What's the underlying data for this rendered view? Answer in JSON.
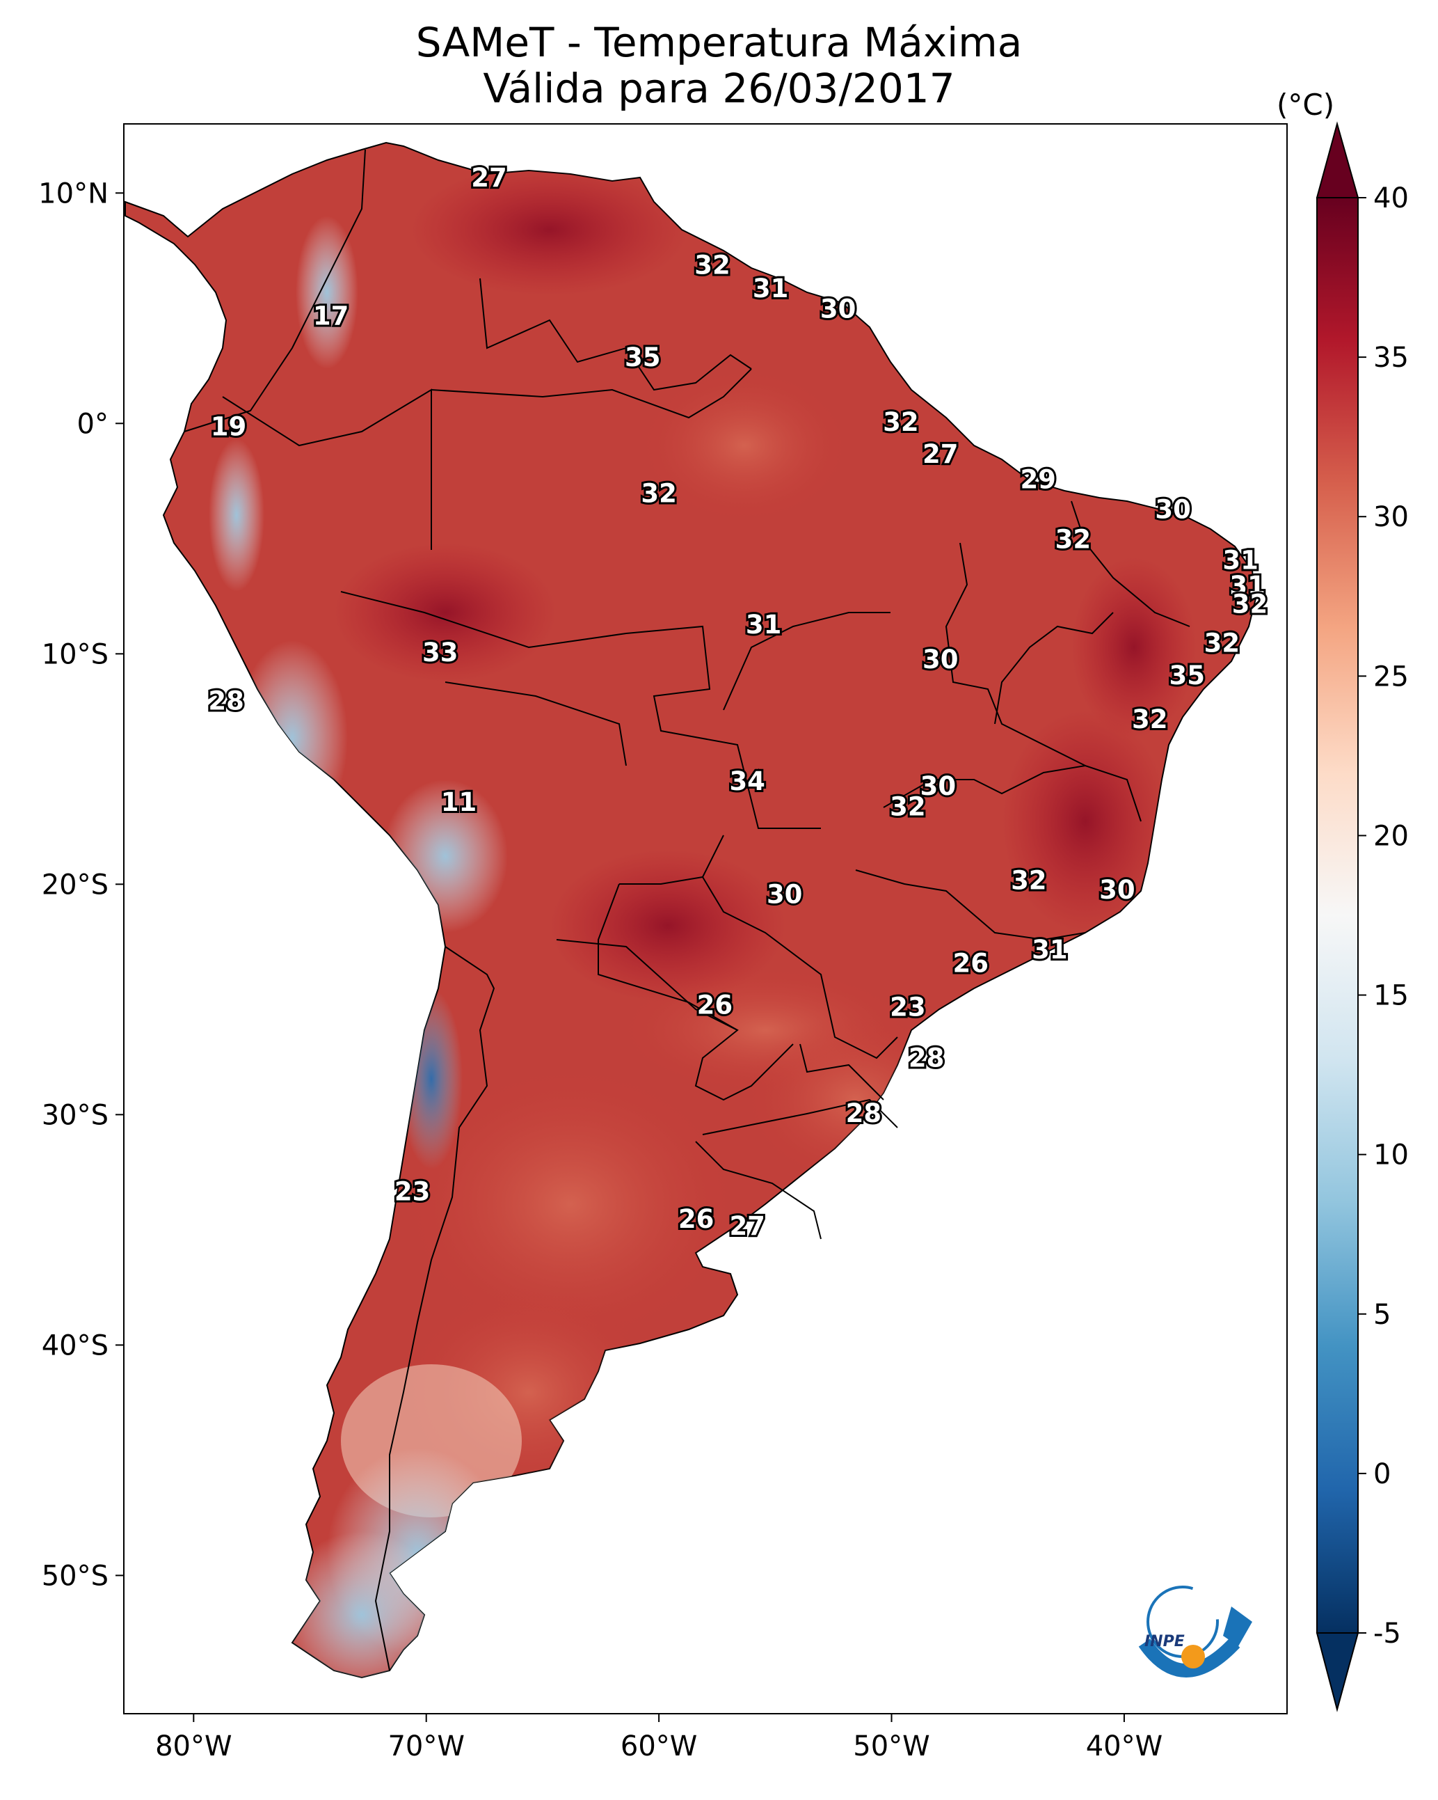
{
  "title": {
    "line1": "SAMeT - Temperatura Máxima",
    "line2": "Válida para 26/03/2017"
  },
  "colorbar": {
    "unit": "(°C)",
    "min": -5,
    "max": 40,
    "ticks": [
      "40",
      "35",
      "30",
      "25",
      "20",
      "15",
      "10",
      "5",
      "0",
      "-5"
    ],
    "tick_values": [
      40,
      35,
      30,
      25,
      20,
      15,
      10,
      5,
      0,
      -5
    ],
    "colors": [
      "#053061",
      "#2166ac",
      "#4393c3",
      "#92c5de",
      "#d1e5f0",
      "#f7f7f7",
      "#fddbc7",
      "#f4a582",
      "#d6604d",
      "#b2182b",
      "#67001f"
    ]
  },
  "axes": {
    "lat_ticks": [
      "10°N",
      "0°",
      "10°S",
      "20°S",
      "30°S",
      "40°S",
      "50°S"
    ],
    "lat_values": [
      10,
      0,
      -10,
      -20,
      -30,
      -40,
      -50
    ],
    "lon_ticks": [
      "80°W",
      "70°W",
      "60°W",
      "50°W",
      "40°W"
    ],
    "lon_values": [
      -80,
      -70,
      -60,
      -50,
      -40
    ],
    "lon_range": [
      -83,
      -33
    ],
    "lat_range": [
      13,
      -56
    ]
  },
  "logo": {
    "text": "INPE",
    "icon": "inpe-logo-icon"
  },
  "station_labels": [
    {
      "value": "27",
      "lon": -67.3,
      "lat": 10.6
    },
    {
      "value": "17",
      "lon": -74.1,
      "lon_note": "",
      "lat": 4.6
    },
    {
      "value": "32",
      "lon": -57.7,
      "lat": 6.8
    },
    {
      "value": "31",
      "lon": -55.2,
      "lat": 5.8
    },
    {
      "value": "30",
      "lon": -52.3,
      "lat": 4.9
    },
    {
      "value": "35",
      "lon": -60.7,
      "lat": 2.8
    },
    {
      "value": "19",
      "lon": -78.5,
      "lat": -0.2
    },
    {
      "value": "32",
      "lon": -49.6,
      "lat": 0.0
    },
    {
      "value": "27",
      "lon": -47.9,
      "lat": -1.4
    },
    {
      "value": "29",
      "lon": -43.7,
      "lat": -2.5
    },
    {
      "value": "32",
      "lon": -60.0,
      "lat": -3.1
    },
    {
      "value": "30",
      "lon": -37.9,
      "lat": -3.8
    },
    {
      "value": "32",
      "lon": -42.2,
      "lat": -5.1
    },
    {
      "value": "31",
      "lon": -35.0,
      "lat": -6.0
    },
    {
      "value": "31",
      "lon": -34.7,
      "lat": -7.1
    },
    {
      "value": "32",
      "lon": -34.6,
      "lat": -7.9
    },
    {
      "value": "31",
      "lon": -55.5,
      "lat": -8.8
    },
    {
      "value": "32",
      "lon": -35.8,
      "lat": -9.6
    },
    {
      "value": "33",
      "lon": -69.4,
      "lat": -10.0
    },
    {
      "value": "30",
      "lon": -47.9,
      "lat": -10.3
    },
    {
      "value": "35",
      "lon": -37.3,
      "lat": -11.0
    },
    {
      "value": "28",
      "lon": -78.6,
      "lat": -12.1
    },
    {
      "value": "32",
      "lon": -38.9,
      "lat": -12.9
    },
    {
      "value": "34",
      "lon": -56.2,
      "lat": -15.6
    },
    {
      "value": "30",
      "lon": -48.0,
      "lat": -15.8
    },
    {
      "value": "32",
      "lon": -49.3,
      "lat": -16.7
    },
    {
      "value": "11",
      "lon": -68.6,
      "lat": -16.5
    },
    {
      "value": "32",
      "lon": -44.1,
      "lat": -19.9
    },
    {
      "value": "30",
      "lon": -40.3,
      "lat": -20.3
    },
    {
      "value": "30",
      "lon": -54.6,
      "lat": -20.5
    },
    {
      "value": "31",
      "lon": -43.2,
      "lat": -22.9
    },
    {
      "value": "26",
      "lon": -46.6,
      "lat": -23.5
    },
    {
      "value": "23",
      "lon": -49.3,
      "lat": -25.4
    },
    {
      "value": "26",
      "lon": -57.6,
      "lat": -25.3
    },
    {
      "value": "28",
      "lon": -48.5,
      "lat": -27.6
    },
    {
      "value": "28",
      "lon": -51.2,
      "lat": -30.0
    },
    {
      "value": "23",
      "lon": -70.6,
      "lat": -33.4
    },
    {
      "value": "26",
      "lon": -58.4,
      "lat": -34.6
    },
    {
      "value": "27",
      "lon": -56.2,
      "lat": -34.9
    }
  ]
}
